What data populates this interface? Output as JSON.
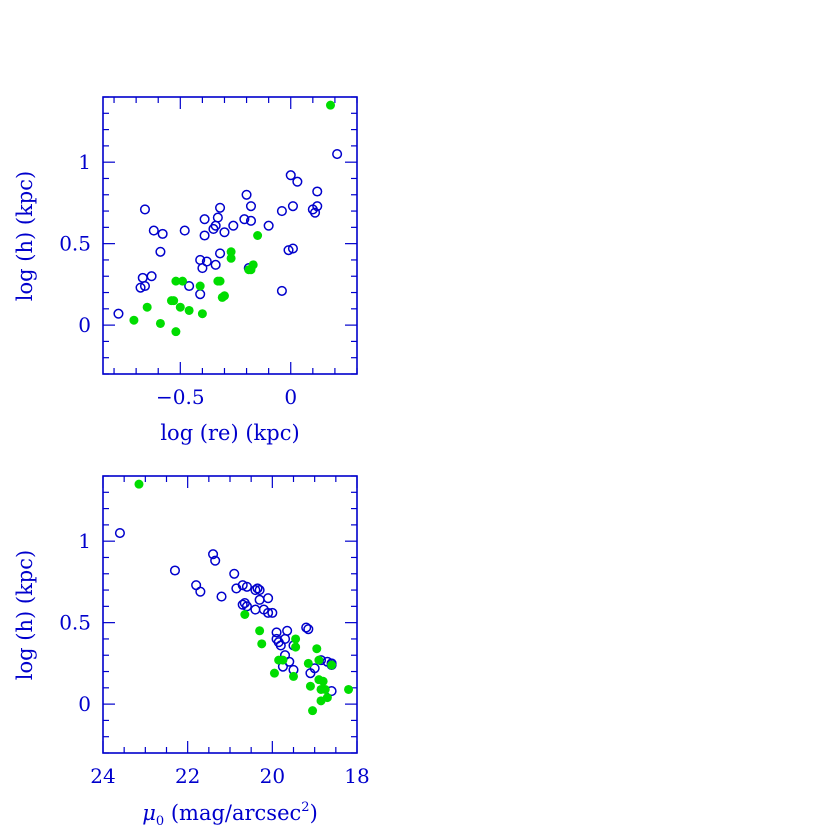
{
  "chart_data": [
    {
      "type": "scatter",
      "xlabel": "log (re) (kpc)",
      "ylabel": "log (h) (kpc)",
      "xlim": [
        -0.85,
        0.3
      ],
      "ylim": [
        -0.3,
        1.4
      ],
      "xticks": [
        {
          "v": -0.5,
          "label": "−0.5"
        },
        {
          "v": 0,
          "label": "0"
        }
      ],
      "yticks": [
        {
          "v": 0,
          "label": "0"
        },
        {
          "v": 0.5,
          "label": "0.5"
        },
        {
          "v": 1,
          "label": "1"
        }
      ],
      "xminor": 0.1,
      "yminor": 0.1,
      "series": [
        {
          "marker": "open-circle",
          "color": "#0000cc",
          "points": [
            [
              -0.78,
              0.07
            ],
            [
              -0.68,
              0.23
            ],
            [
              -0.67,
              0.29
            ],
            [
              -0.66,
              0.24
            ],
            [
              -0.66,
              0.71
            ],
            [
              -0.63,
              0.3
            ],
            [
              -0.62,
              0.58
            ],
            [
              -0.59,
              0.45
            ],
            [
              -0.58,
              0.56
            ],
            [
              -0.48,
              0.58
            ],
            [
              -0.46,
              0.24
            ],
            [
              -0.41,
              0.19
            ],
            [
              -0.41,
              0.4
            ],
            [
              -0.4,
              0.35
            ],
            [
              -0.39,
              0.65
            ],
            [
              -0.39,
              0.55
            ],
            [
              -0.38,
              0.39
            ],
            [
              -0.35,
              0.59
            ],
            [
              -0.34,
              0.61
            ],
            [
              -0.34,
              0.37
            ],
            [
              -0.33,
              0.66
            ],
            [
              -0.32,
              0.72
            ],
            [
              -0.32,
              0.44
            ],
            [
              -0.3,
              0.57
            ],
            [
              -0.26,
              0.61
            ],
            [
              -0.21,
              0.65
            ],
            [
              -0.2,
              0.8
            ],
            [
              -0.19,
              0.35
            ],
            [
              -0.18,
              0.73
            ],
            [
              -0.18,
              0.64
            ],
            [
              -0.1,
              0.61
            ],
            [
              -0.04,
              0.7
            ],
            [
              -0.04,
              0.21
            ],
            [
              -0.01,
              0.46
            ],
            [
              0.0,
              0.92
            ],
            [
              0.01,
              0.47
            ],
            [
              0.01,
              0.73
            ],
            [
              0.03,
              0.88
            ],
            [
              0.1,
              0.71
            ],
            [
              0.11,
              0.69
            ],
            [
              0.12,
              0.73
            ],
            [
              0.12,
              0.82
            ],
            [
              0.21,
              1.05
            ]
          ]
        },
        {
          "marker": "filled-circle",
          "color": "#00dd00",
          "points": [
            [
              -0.71,
              0.03
            ],
            [
              -0.65,
              0.11
            ],
            [
              -0.59,
              0.01
            ],
            [
              -0.54,
              0.15
            ],
            [
              -0.53,
              0.15
            ],
            [
              -0.52,
              -0.04
            ],
            [
              -0.52,
              0.27
            ],
            [
              -0.5,
              0.11
            ],
            [
              -0.49,
              0.27
            ],
            [
              -0.46,
              0.09
            ],
            [
              -0.41,
              0.24
            ],
            [
              -0.4,
              0.07
            ],
            [
              -0.33,
              0.27
            ],
            [
              -0.32,
              0.27
            ],
            [
              -0.31,
              0.17
            ],
            [
              -0.3,
              0.18
            ],
            [
              -0.27,
              0.45
            ],
            [
              -0.27,
              0.41
            ],
            [
              -0.19,
              0.34
            ],
            [
              -0.18,
              0.34
            ],
            [
              -0.17,
              0.37
            ],
            [
              -0.15,
              0.55
            ],
            [
              0.18,
              1.35
            ]
          ]
        }
      ]
    },
    {
      "type": "scatter",
      "xlabel_main": "μ",
      "xlabel_sub": "0",
      "xlabel_mid": " (mag/arcsec",
      "xlabel_sup": "2",
      "xlabel_end": ")",
      "ylabel": "log (h) (kpc)",
      "xlim": [
        24,
        18
      ],
      "ylim": [
        -0.3,
        1.4
      ],
      "xticks": [
        {
          "v": 24,
          "label": "24"
        },
        {
          "v": 22,
          "label": "22"
        },
        {
          "v": 20,
          "label": "20"
        },
        {
          "v": 18,
          "label": "18"
        }
      ],
      "yticks": [
        {
          "v": 0,
          "label": "0"
        },
        {
          "v": 0.5,
          "label": "0.5"
        },
        {
          "v": 1,
          "label": "1"
        }
      ],
      "xminor": 0.5,
      "yminor": 0.1,
      "series": [
        {
          "marker": "open-circle",
          "color": "#0000cc",
          "points": [
            [
              23.6,
              1.05
            ],
            [
              22.3,
              0.82
            ],
            [
              21.8,
              0.73
            ],
            [
              21.7,
              0.69
            ],
            [
              21.4,
              0.92
            ],
            [
              21.35,
              0.88
            ],
            [
              21.2,
              0.66
            ],
            [
              20.9,
              0.8
            ],
            [
              20.85,
              0.71
            ],
            [
              20.7,
              0.73
            ],
            [
              20.7,
              0.61
            ],
            [
              20.65,
              0.62
            ],
            [
              20.6,
              0.6
            ],
            [
              20.6,
              0.72
            ],
            [
              20.4,
              0.7
            ],
            [
              20.4,
              0.58
            ],
            [
              20.35,
              0.71
            ],
            [
              20.3,
              0.7
            ],
            [
              20.3,
              0.64
            ],
            [
              20.2,
              0.58
            ],
            [
              20.1,
              0.65
            ],
            [
              20.1,
              0.56
            ],
            [
              20.0,
              0.56
            ],
            [
              19.9,
              0.44
            ],
            [
              19.9,
              0.4
            ],
            [
              19.85,
              0.38
            ],
            [
              19.8,
              0.36
            ],
            [
              19.75,
              0.23
            ],
            [
              19.7,
              0.3
            ],
            [
              19.7,
              0.4
            ],
            [
              19.65,
              0.45
            ],
            [
              19.6,
              0.26
            ],
            [
              19.5,
              0.36
            ],
            [
              19.5,
              0.21
            ],
            [
              19.2,
              0.47
            ],
            [
              19.15,
              0.46
            ],
            [
              19.1,
              0.19
            ],
            [
              19.0,
              0.22
            ],
            [
              18.85,
              0.27
            ],
            [
              18.7,
              0.26
            ],
            [
              18.6,
              0.25
            ],
            [
              18.6,
              0.24
            ],
            [
              18.6,
              0.08
            ]
          ]
        },
        {
          "marker": "filled-circle",
          "color": "#00dd00",
          "points": [
            [
              23.15,
              1.35
            ],
            [
              20.65,
              0.55
            ],
            [
              20.3,
              0.45
            ],
            [
              20.25,
              0.37
            ],
            [
              19.95,
              0.19
            ],
            [
              19.85,
              0.27
            ],
            [
              19.75,
              0.27
            ],
            [
              19.5,
              0.17
            ],
            [
              19.45,
              0.4
            ],
            [
              19.45,
              0.35
            ],
            [
              19.15,
              0.25
            ],
            [
              19.1,
              0.11
            ],
            [
              19.05,
              -0.04
            ],
            [
              18.95,
              0.34
            ],
            [
              18.9,
              0.27
            ],
            [
              18.9,
              0.15
            ],
            [
              18.85,
              0.09
            ],
            [
              18.85,
              0.02
            ],
            [
              18.8,
              0.14
            ],
            [
              18.75,
              0.09
            ],
            [
              18.7,
              0.04
            ],
            [
              18.6,
              0.24
            ],
            [
              18.2,
              0.09
            ]
          ]
        }
      ]
    }
  ]
}
